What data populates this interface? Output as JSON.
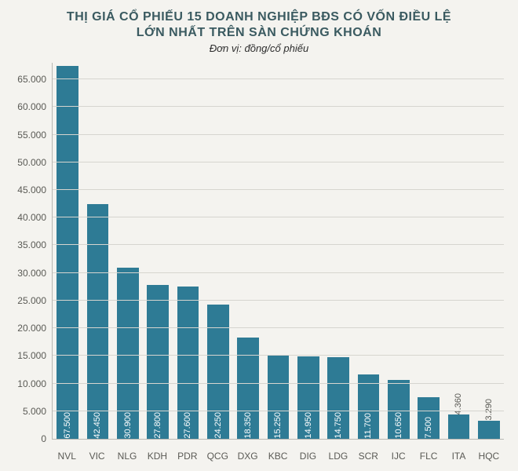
{
  "chart": {
    "type": "bar",
    "title_line1": "THỊ GIÁ CỔ PHIẾU 15 DOANH NGHIỆP BĐS CÓ VỐN ĐIỀU LỆ",
    "title_line2": "LỚN NHẤT TRÊN SÀN CHỨNG KHOÁN",
    "subtitle": "Đơn vị: đồng/cổ phiếu",
    "title_color": "#3a5a60",
    "title_fontsize": 16,
    "subtitle_color": "#2d2d2d",
    "subtitle_fontsize": 13,
    "background_color": "#f4f3ef",
    "axis_color": "#b8b8b3",
    "grid_color": "#d6d5cf",
    "bar_color": "#2e7b95",
    "bar_width_pct": 72,
    "value_label_fontsize": 11,
    "value_label_outside_color": "#5a5a55",
    "xtick_color": "#5a5a55",
    "ytick_color": "#5a5a55",
    "ylim": [
      0,
      68000
    ],
    "yticks": [
      0,
      5000,
      10000,
      15000,
      20000,
      25000,
      30000,
      35000,
      40000,
      45000,
      50000,
      55000,
      60000,
      65000
    ],
    "ytick_labels": [
      "0",
      "5.000",
      "10.000",
      "15.000",
      "20.000",
      "25.000",
      "30.000",
      "35.000",
      "40.000",
      "45.000",
      "50.000",
      "55.000",
      "60.000",
      "65.000"
    ],
    "categories": [
      "NVL",
      "VIC",
      "NLG",
      "KDH",
      "PDR",
      "QCG",
      "DXG",
      "KBC",
      "DIG",
      "LDG",
      "SCR",
      "IJC",
      "FLC",
      "ITA",
      "HQC"
    ],
    "values": [
      67500,
      42450,
      30900,
      27800,
      27600,
      24250,
      18350,
      15250,
      14950,
      14750,
      11700,
      10650,
      7500,
      4360,
      3290
    ],
    "value_labels": [
      "67.500",
      "42.450",
      "30.900",
      "27.800",
      "27.600",
      "24.250",
      "18.350",
      "15.250",
      "14.950",
      "14.750",
      "11.700",
      "10.650",
      "7.500",
      "4.360",
      "3.290"
    ],
    "value_label_outside": [
      false,
      false,
      false,
      false,
      false,
      false,
      false,
      false,
      false,
      false,
      false,
      false,
      false,
      true,
      true
    ]
  }
}
